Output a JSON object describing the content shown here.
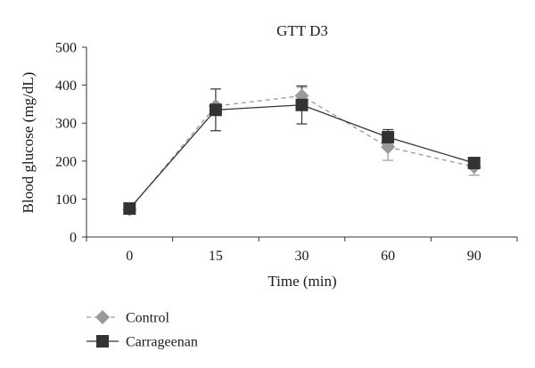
{
  "chart_data": {
    "type": "line",
    "title": "GTT D3",
    "xlabel": "Time (min)",
    "ylabel": "Blood glucose (mg/dL)",
    "categories": [
      "0",
      "15",
      "30",
      "60",
      "90"
    ],
    "ylim": [
      0,
      500
    ],
    "yticks": [
      0,
      100,
      200,
      300,
      400,
      500
    ],
    "grid": false,
    "legend_position": "bottom-left",
    "series": [
      {
        "name": "Control",
        "color": "#9a9a9a",
        "line_style": "dashed",
        "marker": "diamond",
        "values": [
          73,
          345,
          372,
          237,
          185
        ],
        "error": [
          null,
          null,
          22,
          35,
          22
        ]
      },
      {
        "name": "Carrageenan",
        "color": "#333333",
        "line_style": "solid",
        "marker": "square",
        "values": [
          75,
          335,
          348,
          263,
          195
        ],
        "error": [
          null,
          55,
          50,
          20,
          null
        ]
      }
    ]
  }
}
